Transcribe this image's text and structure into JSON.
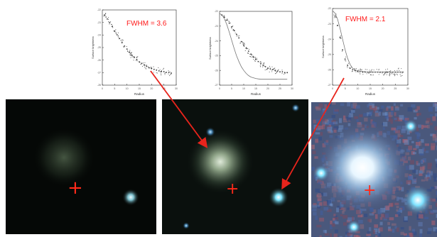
{
  "chart_data": [
    {
      "type": "scatter",
      "title": "",
      "annotation": "FWHM = 3.6",
      "xlabel": "Radius",
      "ylabel": "Surface brightness",
      "x_ticks": [
        "0",
        "5",
        "10",
        "15",
        "20",
        "25",
        "30"
      ],
      "y_ticks": [
        "-22",
        "-23",
        "-24",
        "-25",
        "-26",
        "-27",
        "-28"
      ],
      "series": [
        {
          "kind": "points",
          "x": [
            1,
            2,
            3,
            4,
            5,
            6,
            7,
            8,
            9,
            10,
            11,
            12,
            13,
            14,
            15,
            16,
            17,
            18,
            19,
            20,
            21,
            22,
            23,
            24,
            25,
            26,
            27,
            28
          ],
          "y": [
            0.93,
            0.88,
            0.83,
            0.78,
            0.72,
            0.67,
            0.62,
            0.57,
            0.52,
            0.48,
            0.44,
            0.4,
            0.37,
            0.34,
            0.31,
            0.29,
            0.27,
            0.25,
            0.23,
            0.22,
            0.21,
            0.2,
            0.19,
            0.18,
            0.18,
            0.17,
            0.17,
            0.16
          ]
        }
      ],
      "color": "#333333"
    },
    {
      "type": "scatter",
      "title": "",
      "annotation": "",
      "xlabel": "Radius",
      "ylabel": "Surface brightness",
      "x_ticks": [
        "0",
        "5",
        "10",
        "15",
        "20",
        "25",
        "30"
      ],
      "y_ticks": [
        "-22",
        "-23",
        "-24",
        "-25",
        "-26",
        "-27"
      ],
      "series": [
        {
          "kind": "points",
          "x": [
            1,
            2,
            3,
            4,
            5,
            6,
            7,
            8,
            9,
            10,
            11,
            12,
            13,
            14,
            15,
            16,
            17,
            18,
            19,
            20,
            21,
            22,
            23,
            24,
            25,
            26,
            27,
            28
          ],
          "y": [
            0.95,
            0.92,
            0.88,
            0.84,
            0.79,
            0.74,
            0.69,
            0.64,
            0.59,
            0.54,
            0.5,
            0.46,
            0.42,
            0.38,
            0.35,
            0.32,
            0.29,
            0.27,
            0.25,
            0.23,
            0.22,
            0.21,
            0.2,
            0.19,
            0.18,
            0.18,
            0.17,
            0.17
          ]
        },
        {
          "kind": "line",
          "x": [
            0,
            1,
            2,
            3,
            4,
            5,
            6,
            7,
            8,
            9,
            10,
            11,
            12,
            13,
            14,
            15,
            16,
            17,
            18,
            19,
            20,
            21,
            22,
            23,
            24,
            25,
            26,
            27,
            28
          ],
          "y": [
            0.97,
            0.95,
            0.9,
            0.82,
            0.72,
            0.61,
            0.5,
            0.4,
            0.32,
            0.25,
            0.2,
            0.16,
            0.13,
            0.11,
            0.1,
            0.09,
            0.085,
            0.08,
            0.08,
            0.08,
            0.08,
            0.08,
            0.08,
            0.08,
            0.08,
            0.08,
            0.08,
            0.08,
            0.08
          ]
        }
      ],
      "color": "#333333"
    },
    {
      "type": "scatter",
      "title": "",
      "annotation": "FWHM = 2.1",
      "xlabel": "Radius",
      "ylabel": "Surface brightness",
      "x_ticks": [
        "0",
        "5",
        "10",
        "15",
        "20",
        "25",
        "30"
      ],
      "y_ticks": [
        "-22",
        "-23",
        "-24",
        "-25",
        "-26",
        "-27"
      ],
      "series": [
        {
          "kind": "points",
          "x": [
            1,
            2,
            3,
            4,
            5,
            6,
            7,
            8,
            9,
            10,
            11,
            12,
            13,
            14,
            15,
            16,
            17,
            18,
            19,
            20,
            21,
            22,
            23,
            24,
            25,
            26,
            27,
            28
          ],
          "y": [
            0.9,
            0.78,
            0.62,
            0.46,
            0.34,
            0.26,
            0.22,
            0.2,
            0.19,
            0.18,
            0.18,
            0.17,
            0.17,
            0.17,
            0.17,
            0.17,
            0.17,
            0.17,
            0.17,
            0.17,
            0.17,
            0.17,
            0.17,
            0.17,
            0.17,
            0.17,
            0.17,
            0.17
          ]
        },
        {
          "kind": "line",
          "x": [
            0,
            1,
            2,
            3,
            4,
            5,
            6,
            7,
            8,
            9,
            10,
            11,
            12,
            13,
            14,
            15,
            16,
            17,
            18,
            19,
            20,
            21,
            22,
            23,
            24,
            25,
            26,
            27,
            28
          ],
          "y": [
            0.97,
            0.94,
            0.86,
            0.74,
            0.6,
            0.46,
            0.35,
            0.27,
            0.22,
            0.2,
            0.19,
            0.18,
            0.18,
            0.17,
            0.17,
            0.17,
            0.17,
            0.17,
            0.17,
            0.17,
            0.17,
            0.17,
            0.17,
            0.17,
            0.17,
            0.17,
            0.17,
            0.17,
            0.17
          ]
        }
      ],
      "color": "#333333"
    }
  ],
  "images": [
    {
      "name": "galaxy-image-dim",
      "background": "#050806",
      "galaxy_color": "#3b4a38",
      "star_color": "#bfe9f2",
      "marker": "+"
    },
    {
      "name": "galaxy-image-medium",
      "background": "#0a100d",
      "galaxy_color": "#9fb49a",
      "star_color": "#c9f4ff",
      "marker": "+"
    },
    {
      "name": "galaxy-image-enhanced",
      "background": "#46557a",
      "galaxy_color": "#f4fbff",
      "star_color": "#9be8ff",
      "marker": "+"
    }
  ],
  "colors": {
    "annotation": "#ff1a1a",
    "arrow": "#e8241c",
    "marker": "#ff2a1a"
  }
}
